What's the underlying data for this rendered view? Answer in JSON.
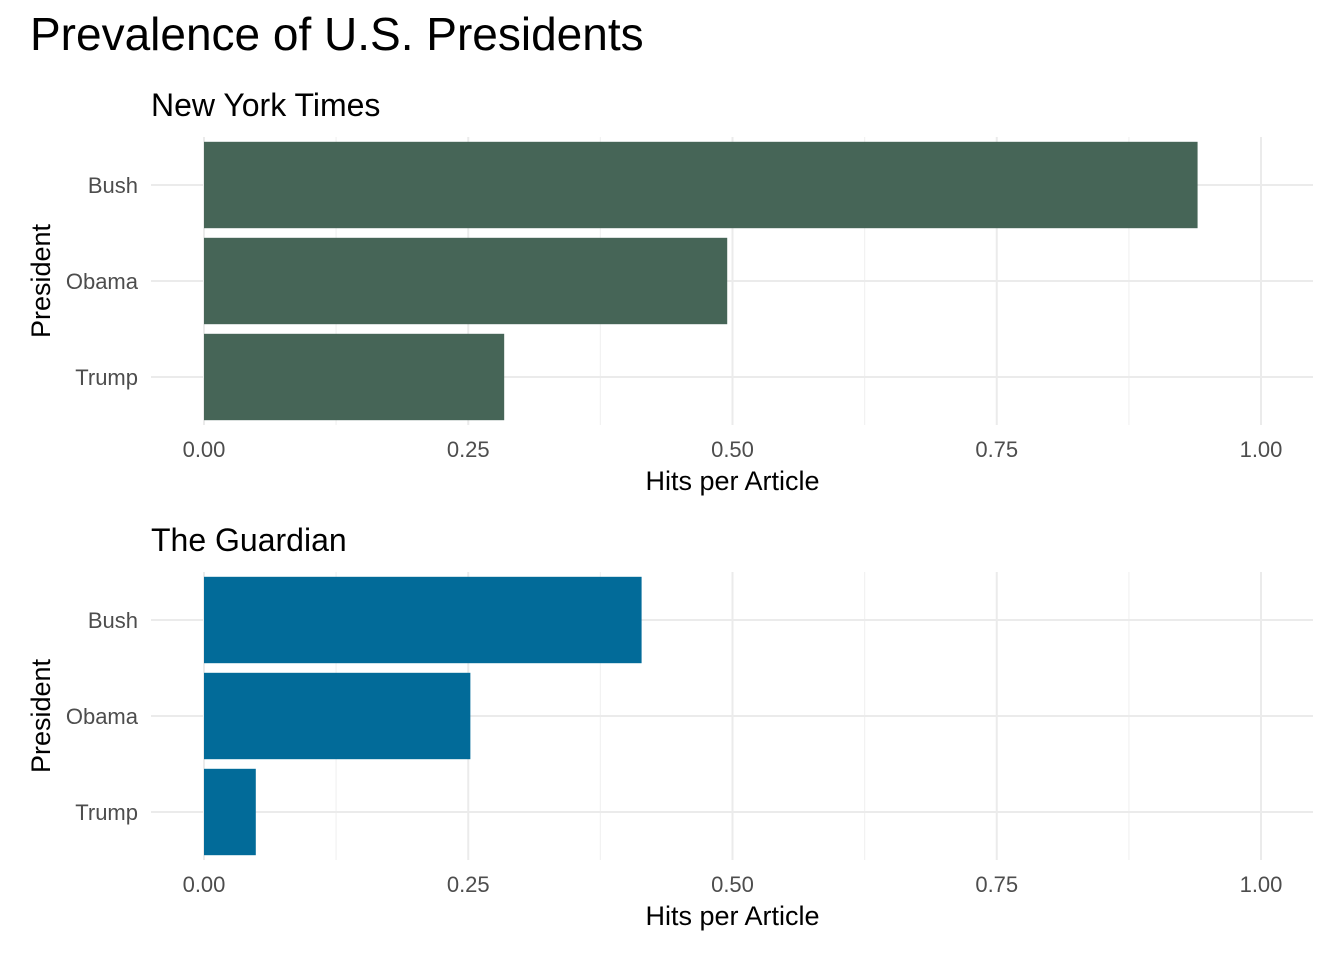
{
  "title": "Prevalence of U.S. Presidents",
  "chart_data": [
    {
      "type": "bar",
      "orientation": "horizontal",
      "title": "New York Times",
      "categories": [
        "Bush",
        "Obama",
        "Trump"
      ],
      "values": [
        0.94,
        0.495,
        0.284
      ],
      "xlabel": "Hits per Article",
      "ylabel": "President",
      "xlim": [
        0,
        1.05
      ],
      "xticks": [
        0,
        0.25,
        0.5,
        0.75,
        1.0
      ],
      "xtick_labels": [
        "0.00",
        "0.25",
        "0.50",
        "0.75",
        "1.00"
      ],
      "bar_color": "#466557",
      "grid": true,
      "legend": "none"
    },
    {
      "type": "bar",
      "orientation": "horizontal",
      "title": "The Guardian",
      "categories": [
        "Bush",
        "Obama",
        "Trump"
      ],
      "values": [
        0.414,
        0.252,
        0.049
      ],
      "xlabel": "Hits per Article",
      "ylabel": "President",
      "xlim": [
        0,
        1.05
      ],
      "xticks": [
        0,
        0.25,
        0.5,
        0.75,
        1.0
      ],
      "xtick_labels": [
        "0.00",
        "0.25",
        "0.50",
        "0.75",
        "1.00"
      ],
      "bar_color": "#026b99",
      "grid": true,
      "legend": "none"
    }
  ]
}
